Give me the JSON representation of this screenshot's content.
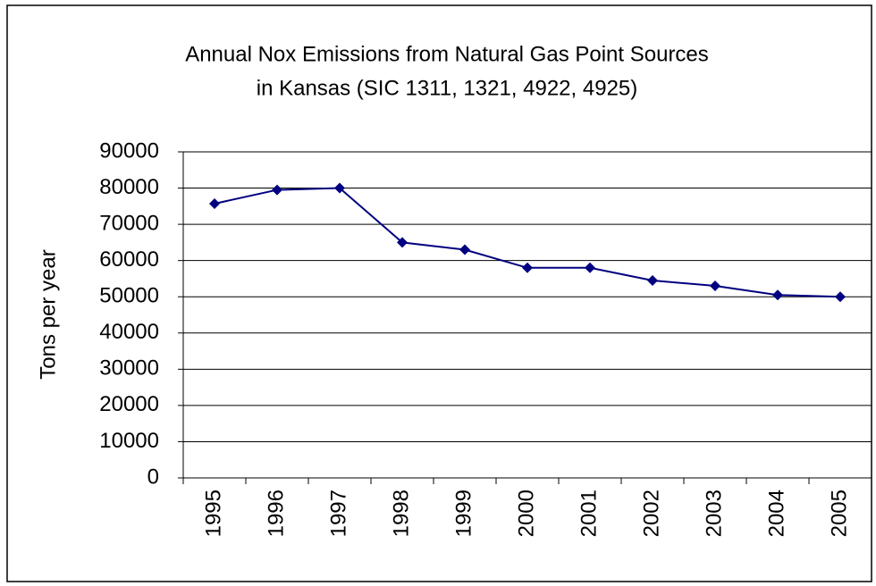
{
  "chart_data": {
    "type": "line",
    "title": [
      "Annual Nox Emissions from Natural Gas Point Sources",
      "in Kansas (SIC 1311, 1321, 4922, 4925)"
    ],
    "y_label": "Tons per year",
    "categories": [
      "1995",
      "1996",
      "1997",
      "1998",
      "1999",
      "2000",
      "2001",
      "2002",
      "2003",
      "2004",
      "2005"
    ],
    "series": [
      {
        "color": "#000080",
        "values": [
          75700,
          79500,
          80000,
          65000,
          63000,
          58000,
          58000,
          54500,
          53000,
          50500,
          50000
        ]
      }
    ],
    "ylim": [
      0,
      90000
    ],
    "yticks": [
      0,
      10000,
      20000,
      30000,
      40000,
      50000,
      60000,
      70000,
      80000,
      90000
    ],
    "grid": true
  }
}
